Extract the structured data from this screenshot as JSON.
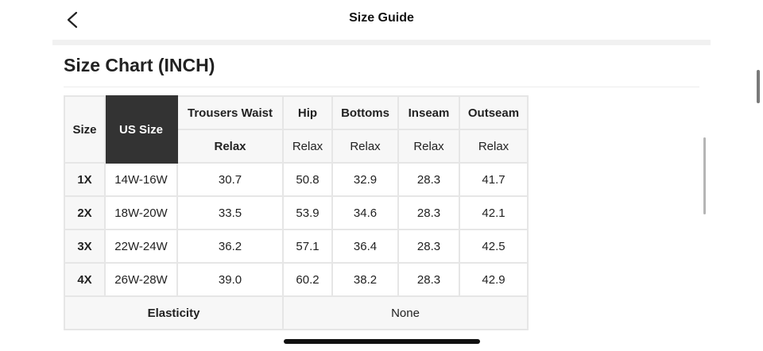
{
  "header": {
    "title": "Size Guide",
    "back_icon": "chevron-left-icon"
  },
  "section": {
    "title": "Size Chart (INCH)"
  },
  "table": {
    "size_header": "Size",
    "us_size_header": "US Size",
    "columns": [
      "Trousers Waist",
      "Hip",
      "Bottoms",
      "Inseam",
      "Outseam"
    ],
    "subheaders": [
      "Relax",
      "Relax",
      "Relax",
      "Relax",
      "Relax"
    ],
    "rows": [
      {
        "size": "1X",
        "us": "14W-16W",
        "values": [
          "30.7",
          "50.8",
          "32.9",
          "28.3",
          "41.7"
        ]
      },
      {
        "size": "2X",
        "us": "18W-20W",
        "values": [
          "33.5",
          "53.9",
          "34.6",
          "28.3",
          "42.1"
        ]
      },
      {
        "size": "3X",
        "us": "22W-24W",
        "values": [
          "36.2",
          "57.1",
          "36.4",
          "28.3",
          "42.5"
        ]
      },
      {
        "size": "4X",
        "us": "26W-28W",
        "values": [
          "39.0",
          "60.2",
          "38.2",
          "28.3",
          "42.9"
        ]
      }
    ],
    "elasticity_label": "Elasticity",
    "elasticity_value": "None"
  },
  "colors": {
    "us_header_bg": "#333333",
    "header_bg": "#f7f7f7",
    "grid": "#e6e6e6"
  }
}
